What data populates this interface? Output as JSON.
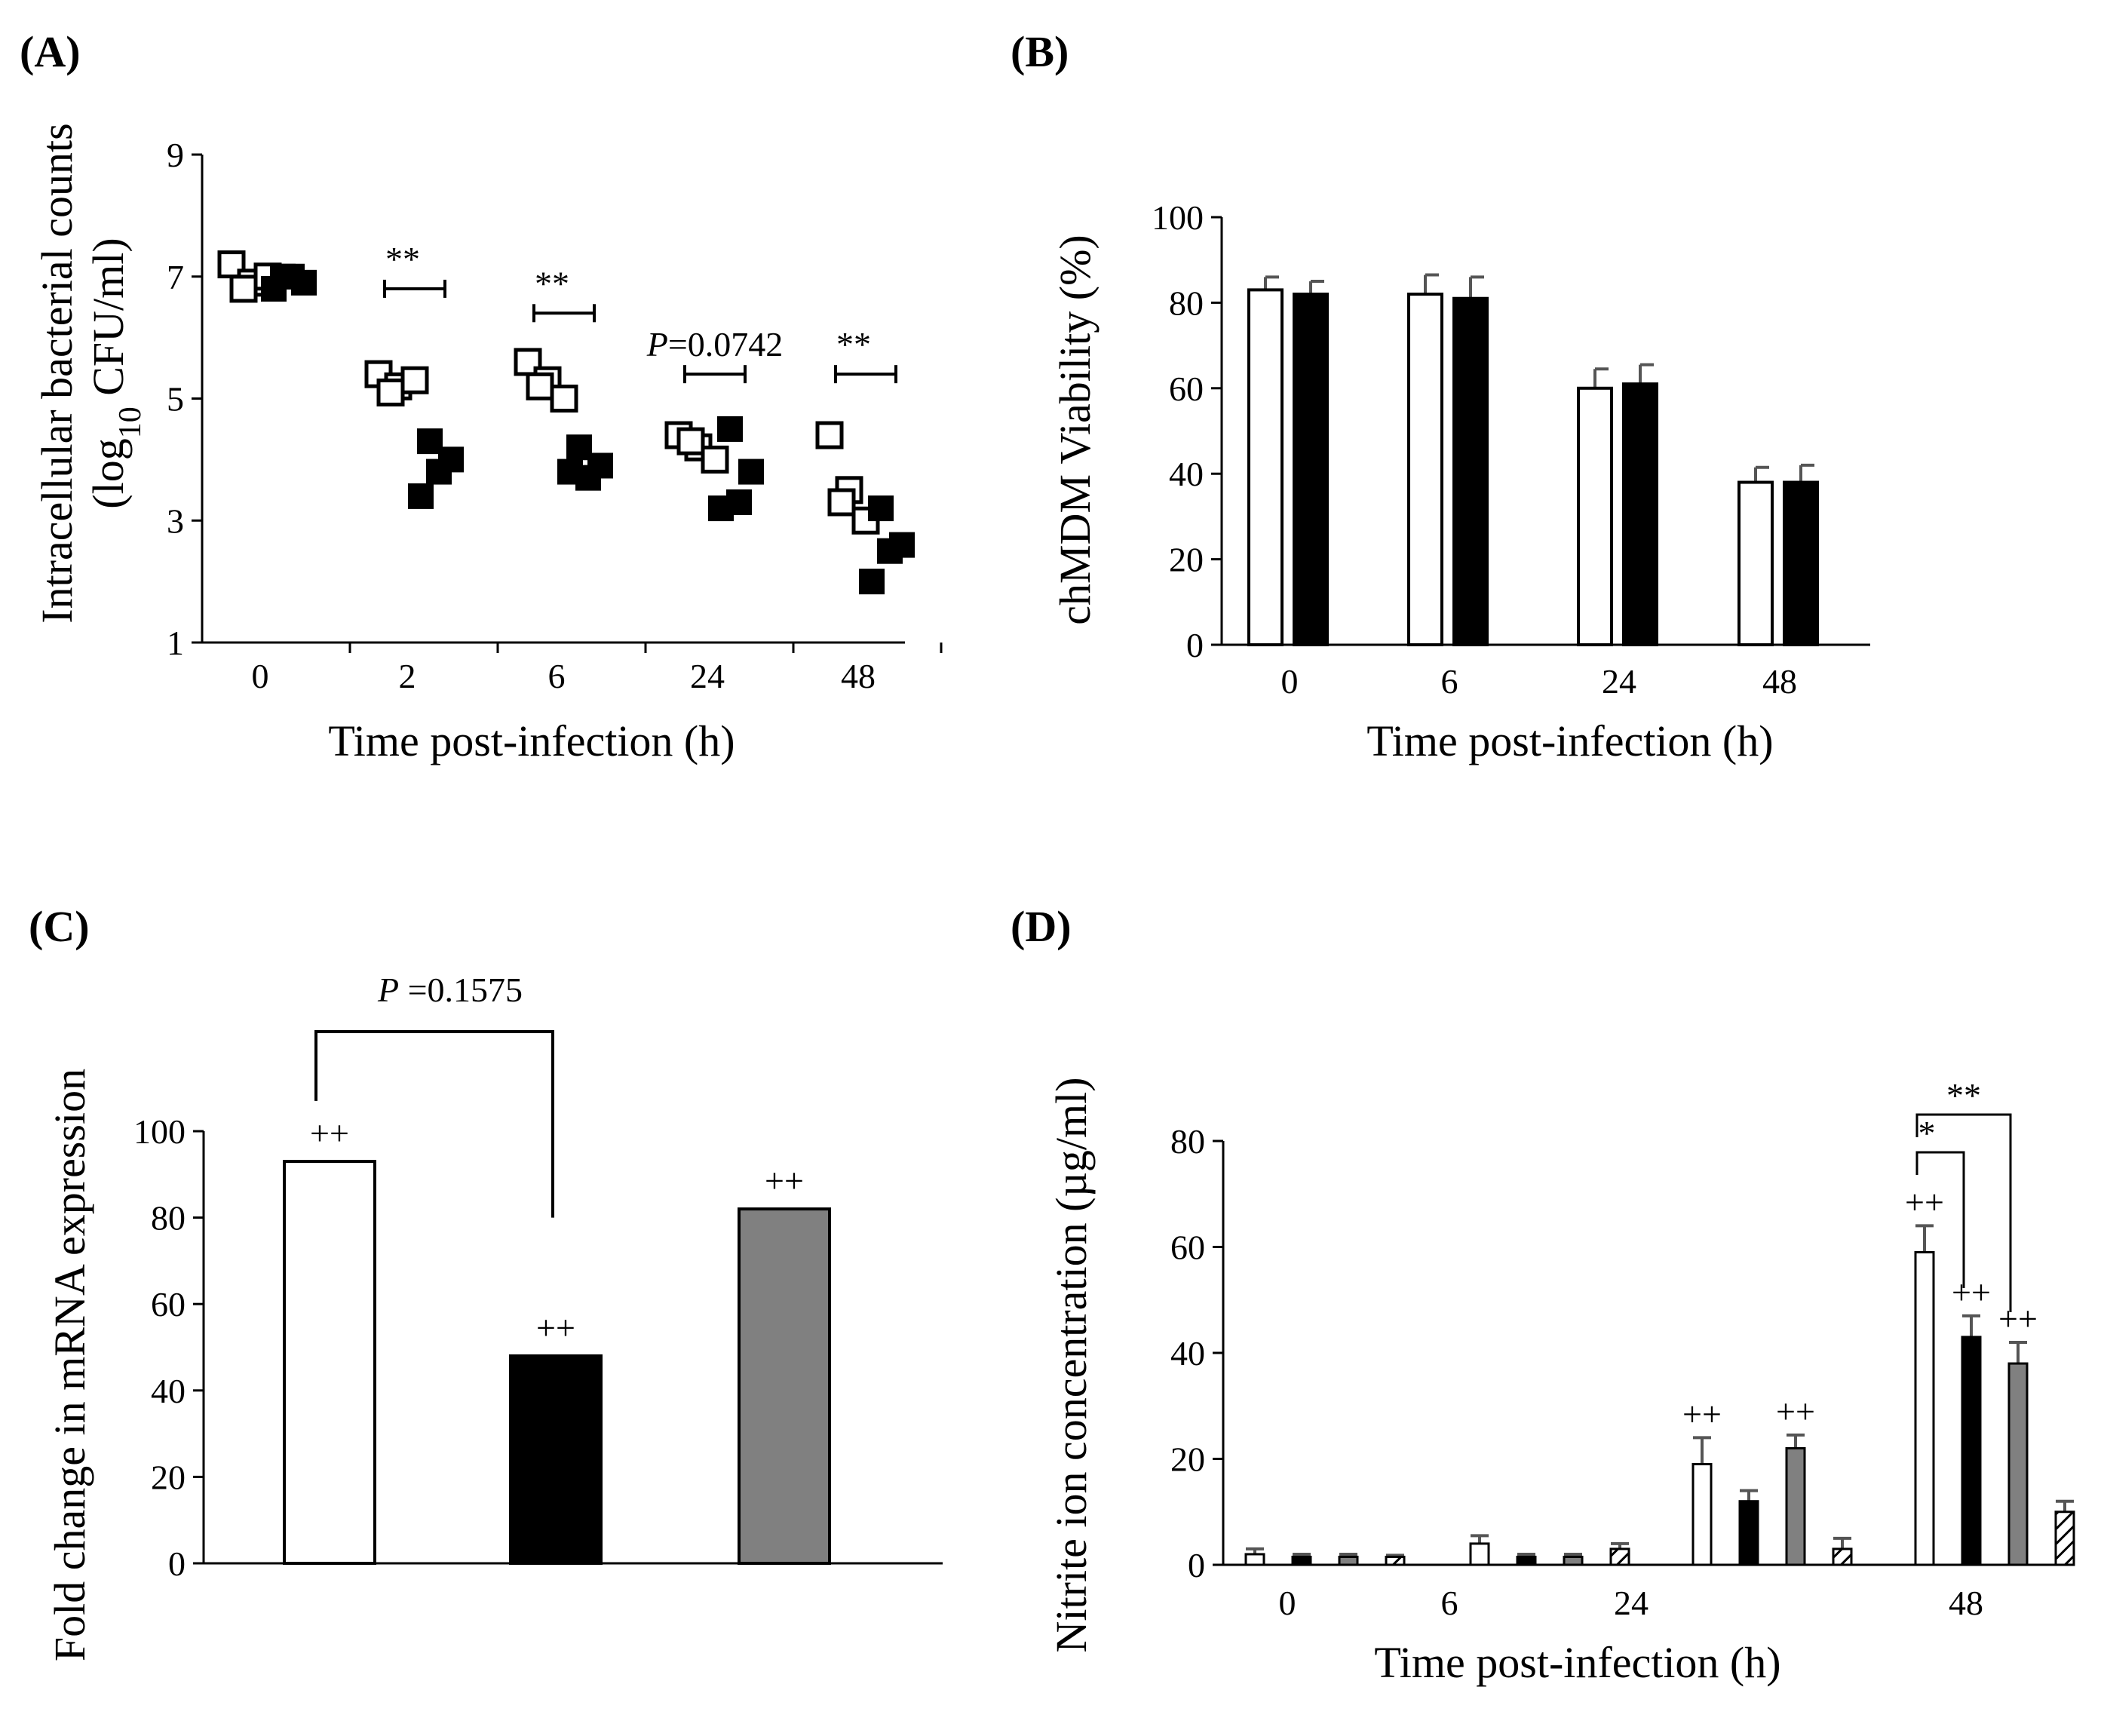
{
  "chart_data": [
    {
      "id": "A",
      "panel_label": "(A)",
      "type": "scatter",
      "ylabel_line1": "Intracellular bacterial counts",
      "ylabel_line2_prefix": "(log",
      "ylabel_line2_sub": "10",
      "ylabel_line2_suffix": " CFU/ml)",
      "xlabel": "Time post-infection (h)",
      "categories": [
        "0",
        "2",
        "6",
        "24",
        "48"
      ],
      "ylim": [
        1,
        9
      ],
      "yticks": [
        1,
        3,
        5,
        7,
        9
      ],
      "series": [
        {
          "name": "open",
          "fill": "#ffffff",
          "values": [
            [
              7.2,
              6.9,
              7.0,
              6.8
            ],
            [
              5.4,
              5.2,
              5.3,
              5.1
            ],
            [
              5.6,
              5.3,
              5.0,
              5.2
            ],
            [
              4.4,
              4.2,
              4.0,
              4.3
            ],
            [
              4.4,
              3.5,
              3.0,
              3.3
            ]
          ]
        },
        {
          "name": "filled",
          "fill": "#000000",
          "values": [
            [
              7.0,
              6.9,
              7.0,
              6.8
            ],
            [
              4.3,
              4.0,
              3.8,
              3.4
            ],
            [
              4.2,
              3.9,
              3.7,
              3.8
            ],
            [
              4.5,
              3.8,
              3.3,
              3.2
            ],
            [
              3.2,
              2.6,
              2.5,
              2.0
            ]
          ]
        }
      ],
      "annotations": [
        {
          "category": "2",
          "text": "**",
          "y": 6.8
        },
        {
          "category": "6",
          "text": "**",
          "y": 6.4
        },
        {
          "category": "24",
          "text": "P=0.0742",
          "y": 5.4
        },
        {
          "category": "48",
          "text": "**",
          "y": 5.4
        }
      ]
    },
    {
      "id": "B",
      "panel_label": "(B)",
      "type": "bar",
      "ylabel": "chMDM Viability  (%)",
      "xlabel": "Time post-infection (h)",
      "categories": [
        "0",
        "6",
        "24",
        "48"
      ],
      "ylim": [
        0,
        100
      ],
      "yticks": [
        0,
        20,
        40,
        60,
        80,
        100
      ],
      "series": [
        {
          "name": "open",
          "fill": "#ffffff",
          "values": [
            83,
            82,
            60,
            38
          ],
          "errors": [
            3,
            4.5,
            4.5,
            3.5
          ]
        },
        {
          "name": "filled",
          "fill": "#000000",
          "values": [
            82,
            81,
            61,
            38
          ],
          "errors": [
            3,
            5,
            4.5,
            4
          ]
        }
      ]
    },
    {
      "id": "C",
      "panel_label": "(C)",
      "type": "bar",
      "ylabel": "Fold change in mRNA expression",
      "xlabel": "",
      "categories": [
        "",
        "",
        ""
      ],
      "ylim": [
        0,
        100
      ],
      "yticks": [
        0,
        20,
        40,
        60,
        80,
        100
      ],
      "values": [
        93,
        48,
        82
      ],
      "fills": [
        "#ffffff",
        "#000000",
        "#808080"
      ],
      "marks": [
        "++",
        "++",
        "++"
      ],
      "bracket_text_italic": "P",
      "bracket_text": " =0.1575"
    },
    {
      "id": "D",
      "panel_label": "(D)",
      "type": "bar",
      "ylabel": "Nitrite ion concentration (µg/ml)",
      "xlabel": "Time post-infection (h)",
      "categories": [
        "0",
        "6",
        "24",
        "48"
      ],
      "ylim": [
        0,
        80
      ],
      "yticks": [
        0,
        20,
        40,
        60,
        80
      ],
      "series": [
        {
          "name": "open",
          "fill": "#ffffff",
          "values": [
            2,
            4,
            19,
            59
          ],
          "errors": [
            1,
            1.5,
            5,
            5
          ],
          "marks": [
            "",
            "",
            "++",
            "++"
          ]
        },
        {
          "name": "filled",
          "fill": "#000000",
          "values": [
            1.5,
            1.5,
            12,
            43
          ],
          "errors": [
            0.5,
            0.5,
            2,
            4
          ],
          "marks": [
            "",
            "",
            "",
            "++"
          ]
        },
        {
          "name": "gray",
          "fill": "#808080",
          "values": [
            1.5,
            1.5,
            22,
            38
          ],
          "errors": [
            0.5,
            0.5,
            2.5,
            4
          ],
          "marks": [
            "",
            "",
            "++",
            "++"
          ]
        },
        {
          "name": "hatched",
          "fill": "hatch",
          "values": [
            1.5,
            3,
            3,
            10
          ],
          "errors": [
            0.3,
            1,
            2,
            2
          ],
          "marks": [
            "",
            "",
            "",
            ""
          ]
        }
      ],
      "brackets": [
        {
          "from_series": 0,
          "to_series": 1,
          "category": "48",
          "text": "*"
        },
        {
          "from_series": 0,
          "to_series": 2,
          "category": "48",
          "text": "**"
        }
      ]
    }
  ]
}
